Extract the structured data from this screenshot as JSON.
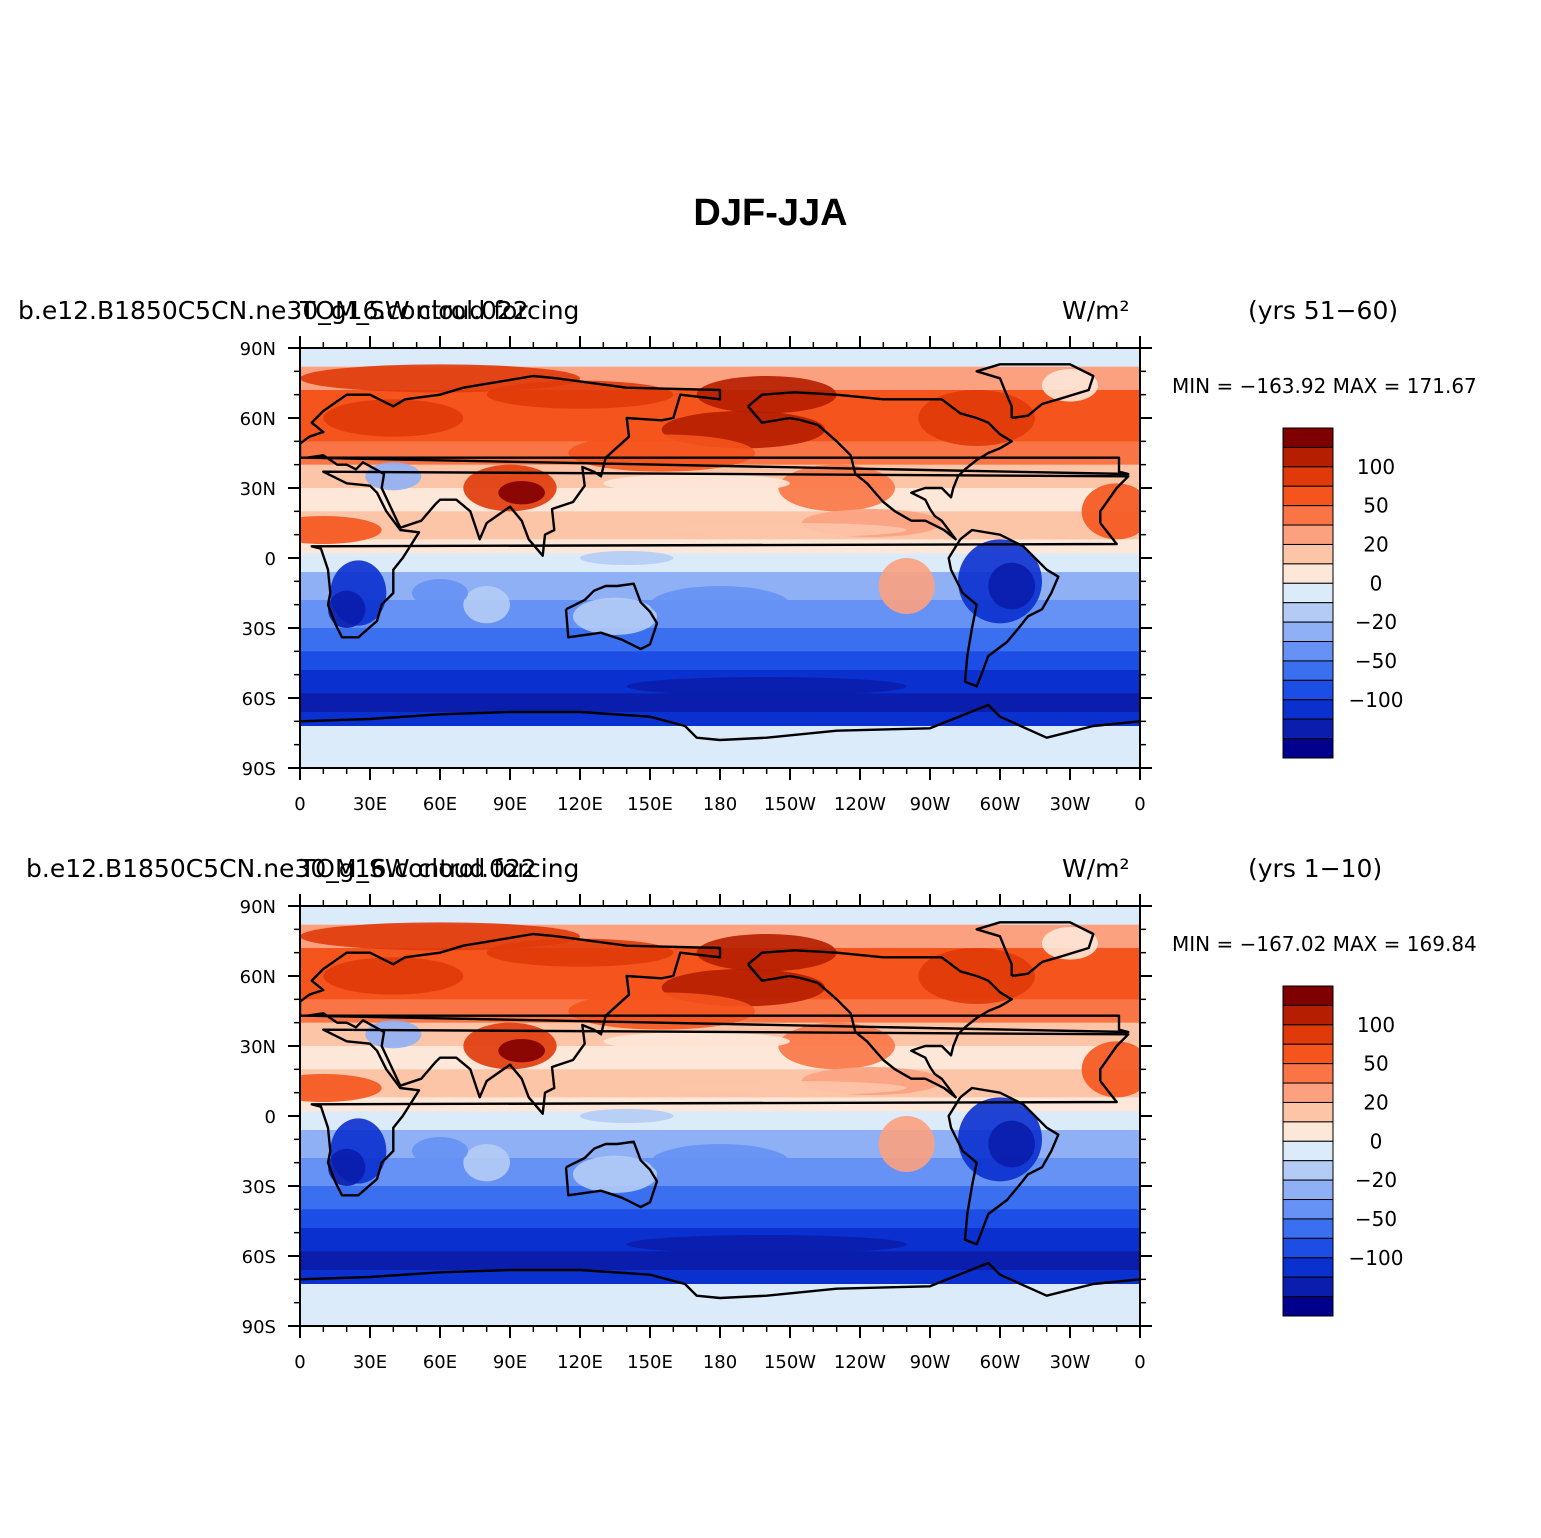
{
  "title": "DJF-JJA",
  "x_ticks": [
    "0",
    "30E",
    "60E",
    "90E",
    "120E",
    "150E",
    "180",
    "150W",
    "120W",
    "90W",
    "60W",
    "30W",
    "0"
  ],
  "y_ticks": [
    "90N",
    "60N",
    "30N",
    "0",
    "30S",
    "60S",
    "90S"
  ],
  "colorbar": {
    "colors": [
      "#7f0000",
      "#b51e00",
      "#e03a0a",
      "#f5541c",
      "#fa7546",
      "#fca17f",
      "#fdc5a8",
      "#fde7d8",
      "#dcebfa",
      "#b4ccf5",
      "#8fb0f5",
      "#6692f5",
      "#3a6ff0",
      "#1c4ee6",
      "#0a30cf",
      "#0a1dac",
      "#00008c"
    ],
    "labels": [
      "100",
      "50",
      "20",
      "0",
      "−20",
      "−50",
      "−100"
    ]
  },
  "panels": [
    {
      "case": "b.e12.B1850C5CN.ne30_g16.control.022",
      "variable": "TOM_SW cloud forcing",
      "units": "W/m²",
      "years": "(yrs 51−60)",
      "minmax": "MIN = −163.92  MAX = 171.67"
    },
    {
      "case": "b.e12.B1850C5CN.ne30_g16.control.022",
      "variable": "TOM_SW cloud forcing",
      "units": "W/m²",
      "years": "(yrs 1−10)",
      "minmax": "MIN = −167.02  MAX = 169.84"
    }
  ]
}
